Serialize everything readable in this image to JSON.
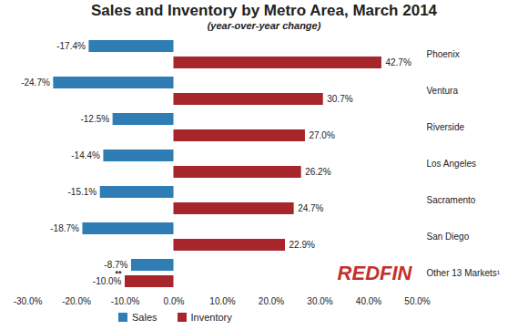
{
  "chart_data": {
    "type": "bar",
    "orientation": "horizontal",
    "title": "Sales and Inventory by Metro Area, March 2014",
    "subtitle": "(year-over-year change)",
    "categories": [
      "Phoenix",
      "Ventura",
      "Riverside",
      "Los Angeles",
      "Sacramento",
      "San Diego",
      "Other 13 Markets¹"
    ],
    "series": [
      {
        "name": "Sales",
        "color": "#2E7DB5",
        "values": [
          -17.4,
          -24.7,
          -12.5,
          -14.4,
          -15.1,
          -18.7,
          -8.7
        ],
        "value_labels": [
          "-17.4%",
          "-24.7%",
          "-12.5%",
          "-14.4%",
          "-15.1%",
          "-18.7%",
          "-8.7%"
        ]
      },
      {
        "name": "Inventory",
        "color": "#A6262B",
        "values": [
          42.7,
          30.7,
          27.0,
          26.2,
          24.7,
          22.9,
          -10.0
        ],
        "value_labels": [
          "42.7%",
          "30.7%",
          "27.0%",
          "26.2%",
          "24.7%",
          "22.9%",
          "-10.0%"
        ]
      }
    ],
    "xlim": [
      -30,
      50
    ],
    "xticks": [
      {
        "value": -30,
        "label": "-30.0%"
      },
      {
        "value": -20,
        "label": "-20.0%"
      },
      {
        "value": -10,
        "label": "-10.0%"
      },
      {
        "value": 0,
        "label": "0.0%"
      },
      {
        "value": 10,
        "label": "10.0%"
      },
      {
        "value": 20,
        "label": "20.0%"
      },
      {
        "value": 30,
        "label": "30.0%"
      },
      {
        "value": 40,
        "label": "40.0%"
      },
      {
        "value": 50,
        "label": "50.0%"
      }
    ],
    "data_labels": true,
    "grid": false,
    "legend": "bottom",
    "annotations": [
      {
        "text": "**",
        "category": "Other 13 Markets¹",
        "series": "Inventory"
      },
      {
        "text": "REDFIN"
      }
    ]
  }
}
